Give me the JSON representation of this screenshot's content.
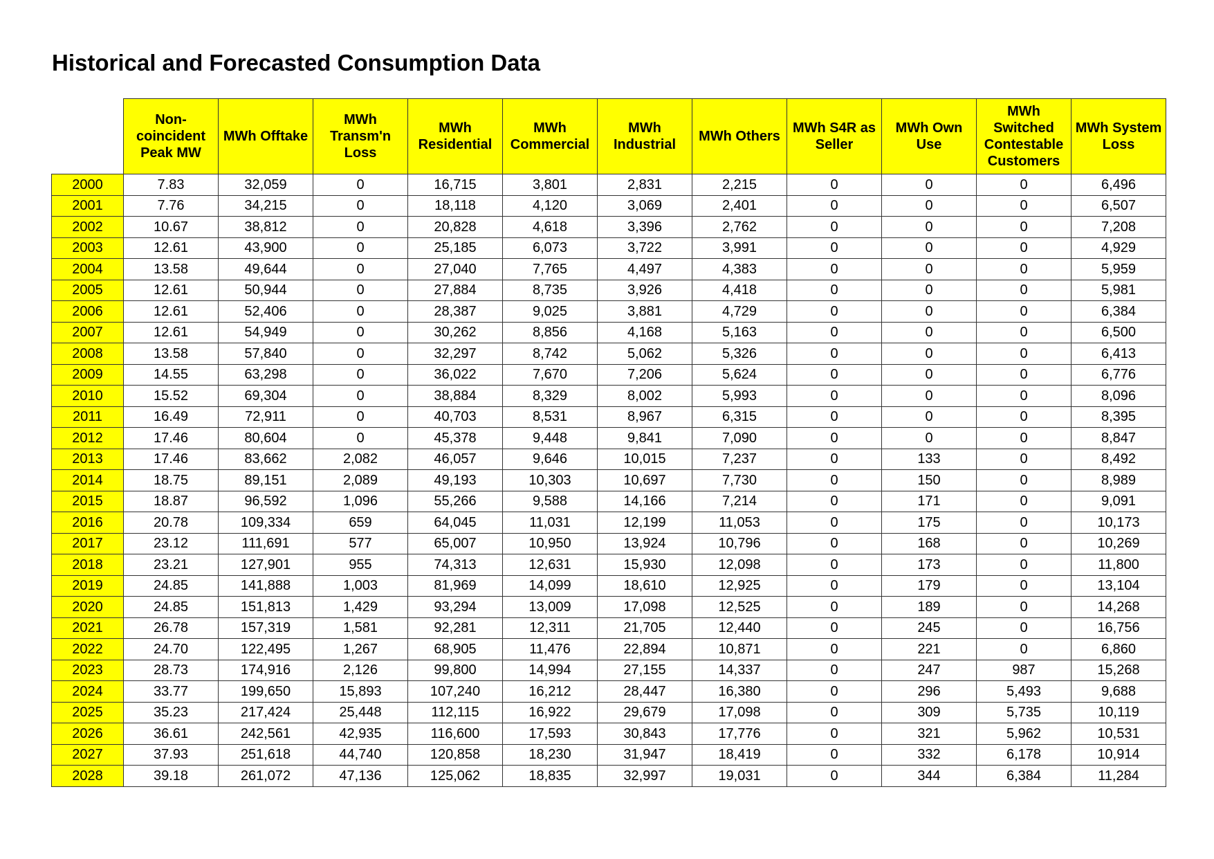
{
  "title": "Historical and Forecasted Consumption Data",
  "colors": {
    "header_background": "#ffff00",
    "year_background": "#ffff00",
    "cell_background": "#ffffff",
    "border": "#333333"
  },
  "table": {
    "columns": [
      "Non-coincident Peak MW",
      "MWh Offtake",
      "MWh Transm'n Loss",
      "MWh Residential",
      "MWh Commercial",
      "MWh Industrial",
      "MWh Others",
      "MWh S4R as Seller",
      "MWh Own Use",
      "MWh Switched Contestable Customers",
      "MWh System Loss"
    ],
    "rows": [
      {
        "year": "2000",
        "values": [
          "7.83",
          "32,059",
          "0",
          "16,715",
          "3,801",
          "2,831",
          "2,215",
          "0",
          "0",
          "0",
          "6,496"
        ]
      },
      {
        "year": "2001",
        "values": [
          "7.76",
          "34,215",
          "0",
          "18,118",
          "4,120",
          "3,069",
          "2,401",
          "0",
          "0",
          "0",
          "6,507"
        ]
      },
      {
        "year": "2002",
        "values": [
          "10.67",
          "38,812",
          "0",
          "20,828",
          "4,618",
          "3,396",
          "2,762",
          "0",
          "0",
          "0",
          "7,208"
        ]
      },
      {
        "year": "2003",
        "values": [
          "12.61",
          "43,900",
          "0",
          "25,185",
          "6,073",
          "3,722",
          "3,991",
          "0",
          "0",
          "0",
          "4,929"
        ]
      },
      {
        "year": "2004",
        "values": [
          "13.58",
          "49,644",
          "0",
          "27,040",
          "7,765",
          "4,497",
          "4,383",
          "0",
          "0",
          "0",
          "5,959"
        ]
      },
      {
        "year": "2005",
        "values": [
          "12.61",
          "50,944",
          "0",
          "27,884",
          "8,735",
          "3,926",
          "4,418",
          "0",
          "0",
          "0",
          "5,981"
        ]
      },
      {
        "year": "2006",
        "values": [
          "12.61",
          "52,406",
          "0",
          "28,387",
          "9,025",
          "3,881",
          "4,729",
          "0",
          "0",
          "0",
          "6,384"
        ]
      },
      {
        "year": "2007",
        "values": [
          "12.61",
          "54,949",
          "0",
          "30,262",
          "8,856",
          "4,168",
          "5,163",
          "0",
          "0",
          "0",
          "6,500"
        ]
      },
      {
        "year": "2008",
        "values": [
          "13.58",
          "57,840",
          "0",
          "32,297",
          "8,742",
          "5,062",
          "5,326",
          "0",
          "0",
          "0",
          "6,413"
        ]
      },
      {
        "year": "2009",
        "values": [
          "14.55",
          "63,298",
          "0",
          "36,022",
          "7,670",
          "7,206",
          "5,624",
          "0",
          "0",
          "0",
          "6,776"
        ]
      },
      {
        "year": "2010",
        "values": [
          "15.52",
          "69,304",
          "0",
          "38,884",
          "8,329",
          "8,002",
          "5,993",
          "0",
          "0",
          "0",
          "8,096"
        ]
      },
      {
        "year": "2011",
        "values": [
          "16.49",
          "72,911",
          "0",
          "40,703",
          "8,531",
          "8,967",
          "6,315",
          "0",
          "0",
          "0",
          "8,395"
        ]
      },
      {
        "year": "2012",
        "values": [
          "17.46",
          "80,604",
          "0",
          "45,378",
          "9,448",
          "9,841",
          "7,090",
          "0",
          "0",
          "0",
          "8,847"
        ]
      },
      {
        "year": "2013",
        "values": [
          "17.46",
          "83,662",
          "2,082",
          "46,057",
          "9,646",
          "10,015",
          "7,237",
          "0",
          "133",
          "0",
          "8,492"
        ]
      },
      {
        "year": "2014",
        "values": [
          "18.75",
          "89,151",
          "2,089",
          "49,193",
          "10,303",
          "10,697",
          "7,730",
          "0",
          "150",
          "0",
          "8,989"
        ]
      },
      {
        "year": "2015",
        "values": [
          "18.87",
          "96,592",
          "1,096",
          "55,266",
          "9,588",
          "14,166",
          "7,214",
          "0",
          "171",
          "0",
          "9,091"
        ]
      },
      {
        "year": "2016",
        "values": [
          "20.78",
          "109,334",
          "659",
          "64,045",
          "11,031",
          "12,199",
          "11,053",
          "0",
          "175",
          "0",
          "10,173"
        ]
      },
      {
        "year": "2017",
        "values": [
          "23.12",
          "111,691",
          "577",
          "65,007",
          "10,950",
          "13,924",
          "10,796",
          "0",
          "168",
          "0",
          "10,269"
        ]
      },
      {
        "year": "2018",
        "values": [
          "23.21",
          "127,901",
          "955",
          "74,313",
          "12,631",
          "15,930",
          "12,098",
          "0",
          "173",
          "0",
          "11,800"
        ]
      },
      {
        "year": "2019",
        "values": [
          "24.85",
          "141,888",
          "1,003",
          "81,969",
          "14,099",
          "18,610",
          "12,925",
          "0",
          "179",
          "0",
          "13,104"
        ]
      },
      {
        "year": "2020",
        "values": [
          "24.85",
          "151,813",
          "1,429",
          "93,294",
          "13,009",
          "17,098",
          "12,525",
          "0",
          "189",
          "0",
          "14,268"
        ]
      },
      {
        "year": "2021",
        "values": [
          "26.78",
          "157,319",
          "1,581",
          "92,281",
          "12,311",
          "21,705",
          "12,440",
          "0",
          "245",
          "0",
          "16,756"
        ]
      },
      {
        "year": "2022",
        "values": [
          "24.70",
          "122,495",
          "1,267",
          "68,905",
          "11,476",
          "22,894",
          "10,871",
          "0",
          "221",
          "0",
          "6,860"
        ]
      },
      {
        "year": "2023",
        "values": [
          "28.73",
          "174,916",
          "2,126",
          "99,800",
          "14,994",
          "27,155",
          "14,337",
          "0",
          "247",
          "987",
          "15,268"
        ]
      },
      {
        "year": "2024",
        "values": [
          "33.77",
          "199,650",
          "15,893",
          "107,240",
          "16,212",
          "28,447",
          "16,380",
          "0",
          "296",
          "5,493",
          "9,688"
        ]
      },
      {
        "year": "2025",
        "values": [
          "35.23",
          "217,424",
          "25,448",
          "112,115",
          "16,922",
          "29,679",
          "17,098",
          "0",
          "309",
          "5,735",
          "10,119"
        ]
      },
      {
        "year": "2026",
        "values": [
          "36.61",
          "242,561",
          "42,935",
          "116,600",
          "17,593",
          "30,843",
          "17,776",
          "0",
          "321",
          "5,962",
          "10,531"
        ]
      },
      {
        "year": "2027",
        "values": [
          "37.93",
          "251,618",
          "44,740",
          "120,858",
          "18,230",
          "31,947",
          "18,419",
          "0",
          "332",
          "6,178",
          "10,914"
        ]
      },
      {
        "year": "2028",
        "values": [
          "39.18",
          "261,072",
          "47,136",
          "125,062",
          "18,835",
          "32,997",
          "19,031",
          "0",
          "344",
          "6,384",
          "11,284"
        ]
      }
    ]
  }
}
